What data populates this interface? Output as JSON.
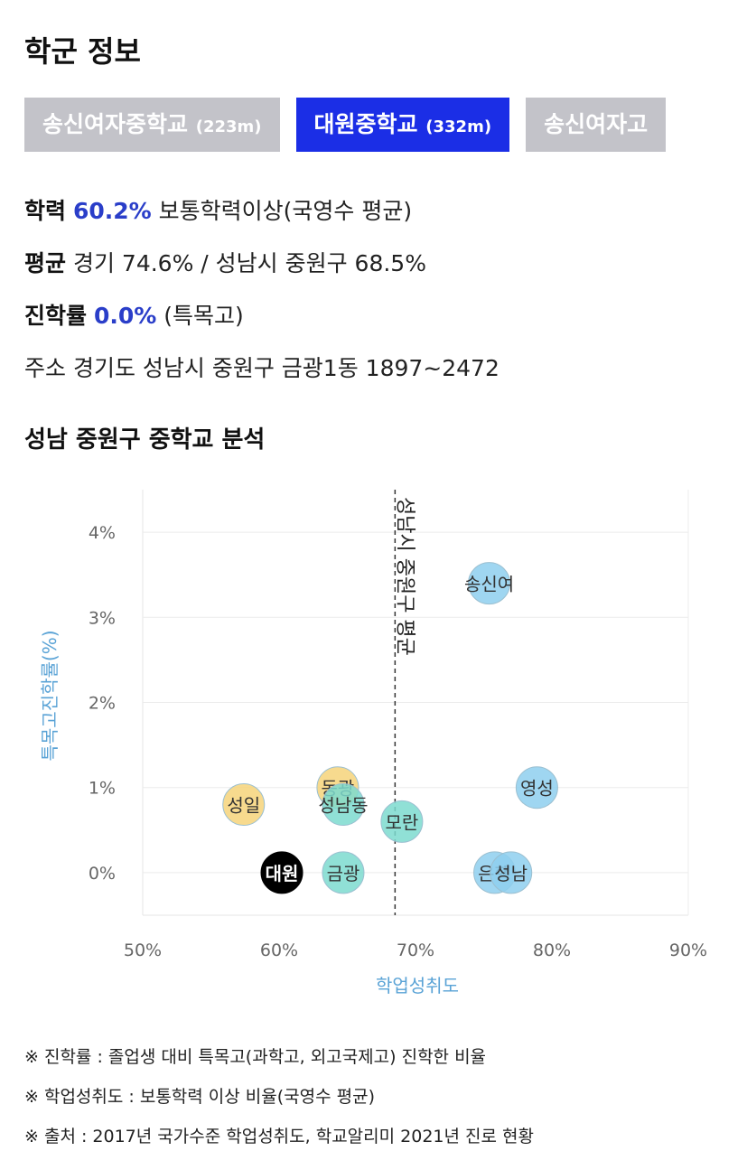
{
  "section_title": "학군 정보",
  "tabs": [
    {
      "name": "송신여자중학교",
      "distance": "(223m)",
      "active": false
    },
    {
      "name": "대원중학교",
      "distance": "(332m)",
      "active": true
    },
    {
      "name": "송신여자고",
      "distance": "",
      "active": false
    }
  ],
  "info": {
    "achievement_label": "학력",
    "achievement_value": "60.2%",
    "achievement_desc": "보통학력이상(국영수 평균)",
    "average_label": "평균",
    "average_desc": "경기 74.6% / 성남시 중원구 68.5%",
    "advancement_label": "진학률",
    "advancement_value": "0.0%",
    "advancement_desc": "(특목고)",
    "address_label": "주소",
    "address_value": "경기도 성남시 중원구 금광1동 1897~2472"
  },
  "chart_title": "성남 중원구 중학교 분석",
  "chart_data": {
    "type": "scatter",
    "xlabel": "학업성취도",
    "ylabel": "특목고진학률(%)",
    "xlim": [
      50,
      90
    ],
    "ylim": [
      -0.5,
      4.5
    ],
    "x_ticks": [
      "50%",
      "60%",
      "70%",
      "80%",
      "90%"
    ],
    "y_ticks": [
      "0%",
      "1%",
      "2%",
      "3%",
      "4%"
    ],
    "reference_line": {
      "x": 68.5,
      "label": "성남시 중원구 평균"
    },
    "points": [
      {
        "label": "송신여",
        "x": 75.4,
        "y": 3.4,
        "color": "#8ecfee"
      },
      {
        "label": "영성",
        "x": 78.9,
        "y": 1.0,
        "color": "#8ecfee"
      },
      {
        "label": "성일",
        "x": 57.4,
        "y": 0.8,
        "color": "#f6d37a"
      },
      {
        "label": "동광",
        "x": 64.3,
        "y": 1.0,
        "color": "#f6d37a"
      },
      {
        "label": "성남동",
        "x": 64.7,
        "y": 0.8,
        "color": "#7ddbcf"
      },
      {
        "label": "모란",
        "x": 69.0,
        "y": 0.6,
        "color": "#7ddbcf"
      },
      {
        "label": "대원",
        "x": 60.2,
        "y": 0.0,
        "color": "#000000"
      },
      {
        "label": "금광",
        "x": 64.7,
        "y": 0.0,
        "color": "#7ddbcf"
      },
      {
        "label": "은행",
        "x": 75.8,
        "y": 0.0,
        "color": "#8ecfee"
      },
      {
        "label": "성남",
        "x": 77.0,
        "y": 0.0,
        "color": "#8ecfee"
      }
    ]
  },
  "notes": [
    "※ 진학률 : 졸업생 대비 특목고(과학고, 외고국제고) 진학한 비율",
    "※ 학업성취도 : 보통학력 이상 비율(국영수 평균)",
    "※ 출처 : 2017년 국가수준 학업성취도, 학교알리미 2021년 진로 현황"
  ]
}
